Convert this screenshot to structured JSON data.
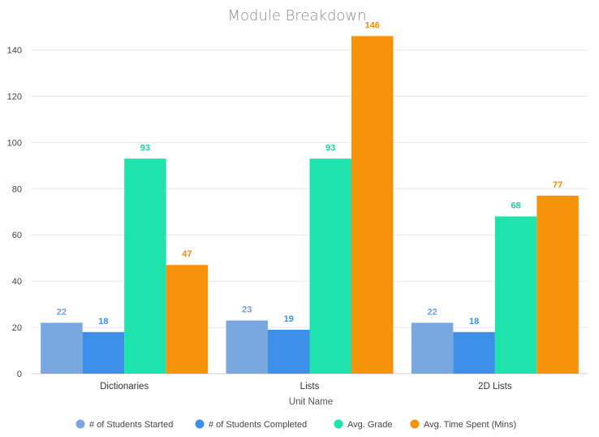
{
  "chart_data": {
    "type": "bar",
    "title": "Module Breakdown",
    "xlabel": "Unit Name",
    "ylabel": "",
    "ylim": [
      0,
      150
    ],
    "yticks": [
      0,
      20,
      40,
      60,
      80,
      100,
      120,
      140
    ],
    "grid": true,
    "legend_position": "bottom",
    "categories": [
      "Dictionaries",
      "Lists",
      "2D Lists"
    ],
    "series": [
      {
        "name": "# of Students Started",
        "color": "#79a7e0",
        "label_color": "#6f9fd8",
        "values": [
          22,
          23,
          22
        ]
      },
      {
        "name": "# of Students Completed",
        "color": "#3d8fe9",
        "label_color": "#3d8fe9",
        "values": [
          18,
          19,
          18
        ]
      },
      {
        "name": "Avg. Grade",
        "color": "#1ee3ad",
        "label_color": "#1ccf9e",
        "values": [
          93,
          93,
          68
        ]
      },
      {
        "name": "Avg. Time Spent (Mins)",
        "color": "#f7930a",
        "label_color": "#f08c09",
        "values": [
          47,
          146,
          77
        ]
      }
    ]
  }
}
